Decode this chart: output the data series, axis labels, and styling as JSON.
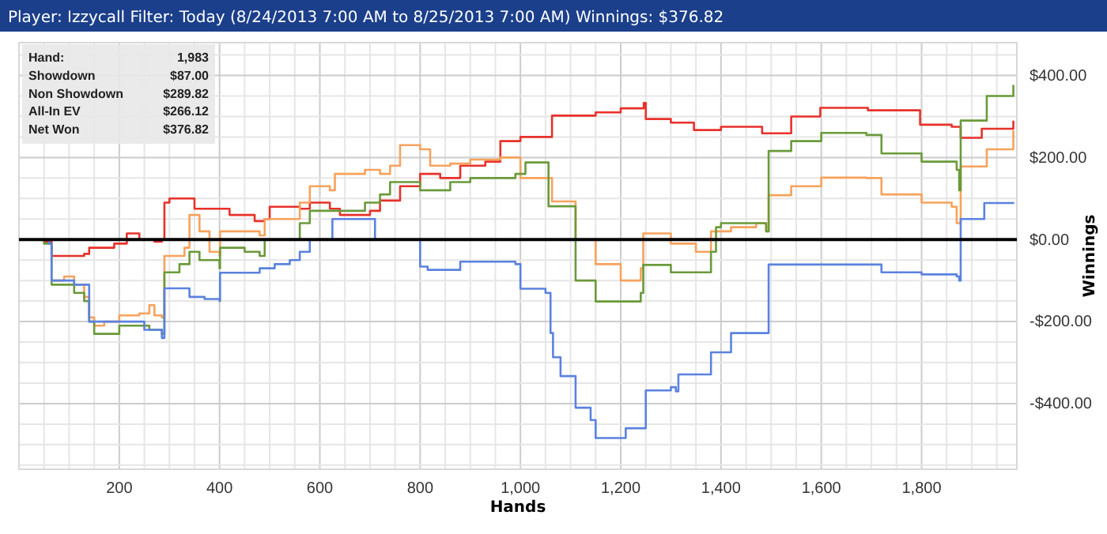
{
  "chart_data": {
    "type": "step",
    "title": "Player: Izzycall Filter: Today (8/24/2013 7:00 AM to 8/25/2013 7:00 AM) Winnings: $376.82",
    "xlabel": "Hands",
    "ylabel": "Winnings",
    "annotations": [
      "Hand:",
      "1,983",
      "Showdown",
      "$87.00",
      "Non Showdown",
      "$289.82",
      "All-In EV",
      "$266.12",
      "Net Won",
      "$376.82"
    ],
    "xlim": [
      0,
      1990
    ],
    "ylim": [
      -560,
      480
    ],
    "xticks": [
      {
        "value": 50,
        "label": null
      },
      {
        "value": 100,
        "label": null
      },
      {
        "value": 150,
        "label": null
      },
      200,
      {
        "value": 250,
        "label": null
      },
      {
        "value": 300,
        "label": null
      },
      {
        "value": 350,
        "label": null
      },
      400,
      {
        "value": 450,
        "label": null
      },
      {
        "value": 500,
        "label": null
      },
      {
        "value": 550,
        "label": null
      },
      600,
      {
        "value": 650,
        "label": null
      },
      {
        "value": 700,
        "label": null
      },
      {
        "value": 750,
        "label": null
      },
      800,
      {
        "value": 850,
        "label": null
      },
      {
        "value": 900,
        "label": null
      },
      {
        "value": 950,
        "label": null
      },
      {
        "value": 1000,
        "label": "1,000"
      },
      {
        "value": 1050,
        "label": null
      },
      {
        "value": 1100,
        "label": null
      },
      {
        "value": 1150,
        "label": null
      },
      {
        "value": 1200,
        "label": "1,200"
      },
      {
        "value": 1250,
        "label": null
      },
      {
        "value": 1300,
        "label": null
      },
      {
        "value": 1350,
        "label": null
      },
      {
        "value": 1400,
        "label": "1,400"
      },
      {
        "value": 1450,
        "label": null
      },
      {
        "value": 1500,
        "label": null
      },
      {
        "value": 1550,
        "label": null
      },
      {
        "value": 1600,
        "label": "1,600"
      },
      {
        "value": 1650,
        "label": null
      },
      {
        "value": 1700,
        "label": null
      },
      {
        "value": 1750,
        "label": null
      },
      {
        "value": 1800,
        "label": "1,800"
      },
      {
        "value": 1850,
        "label": null
      },
      {
        "value": 1900,
        "label": null
      },
      {
        "value": 1950,
        "label": null
      }
    ],
    "yticks": [
      {
        "value": -550,
        "label": null
      },
      {
        "value": -500,
        "label": null
      },
      {
        "value": -450,
        "label": null
      },
      {
        "value": -400,
        "label": "-$400.00"
      },
      {
        "value": -350,
        "label": null
      },
      {
        "value": -300,
        "label": null
      },
      {
        "value": -250,
        "label": null
      },
      {
        "value": -200,
        "label": "-$200.00"
      },
      {
        "value": -150,
        "label": null
      },
      {
        "value": -100,
        "label": null
      },
      {
        "value": -50,
        "label": null
      },
      {
        "value": 0,
        "label": "$0.00"
      },
      {
        "value": 50,
        "label": null
      },
      {
        "value": 100,
        "label": null
      },
      {
        "value": 150,
        "label": null
      },
      {
        "value": 200,
        "label": "$200.00"
      },
      {
        "value": 250,
        "label": null
      },
      {
        "value": 300,
        "label": null
      },
      {
        "value": 350,
        "label": null
      },
      {
        "value": 400,
        "label": "$400.00"
      },
      {
        "value": 450,
        "label": null
      }
    ],
    "grid": true,
    "line_style": "solid",
    "ref_lines": [
      {
        "axis": "y",
        "value": 0,
        "label": null,
        "color": "#000000"
      }
    ],
    "series": [
      {
        "color": "#e8312a",
        "x": [
          0,
          50,
          65,
          130,
          140,
          190,
          215,
          240,
          270,
          285,
          290,
          300,
          350,
          420,
          470,
          490,
          500,
          560,
          580,
          620,
          640,
          680,
          700,
          720,
          760,
          800,
          840,
          880,
          930,
          960,
          1000,
          1063,
          1150,
          1200,
          1246,
          1250,
          1300,
          1346,
          1400,
          1482,
          1540,
          1598,
          1693,
          1797,
          1860,
          1878,
          1920,
          1983
        ],
        "values": [
          0,
          -5,
          -40,
          -35,
          -20,
          -10,
          15,
          0,
          -5,
          0,
          90,
          100,
          75,
          60,
          45,
          50,
          80,
          75,
          90,
          75,
          60,
          60,
          70,
          95,
          130,
          160,
          150,
          180,
          190,
          240,
          250,
          302,
          310,
          320,
          333,
          294,
          285,
          267,
          275,
          259,
          300,
          321,
          315,
          280,
          275,
          248,
          270,
          290
        ]
      },
      {
        "color": "#f7a25c",
        "x": [
          65,
          90,
          110,
          130,
          140,
          150,
          170,
          200,
          240,
          260,
          270,
          285,
          290,
          330,
          340,
          360,
          380,
          400,
          401,
          480,
          490,
          560,
          580,
          620,
          630,
          690,
          720,
          740,
          760,
          800,
          820,
          860,
          900,
          960,
          990,
          1000,
          1063,
          1110,
          1150,
          1200,
          1240,
          1245,
          1300,
          1350,
          1380,
          1420,
          1470,
          1490,
          1495,
          1540,
          1600,
          1690,
          1720,
          1800,
          1860,
          1870,
          1878,
          1930,
          1983
        ],
        "values": [
          -100,
          -90,
          -110,
          -140,
          -190,
          -210,
          -200,
          -185,
          -180,
          -160,
          -185,
          -190,
          -40,
          -20,
          60,
          20,
          -30,
          -40,
          20,
          10,
          50,
          90,
          130,
          120,
          160,
          170,
          160,
          180,
          230,
          220,
          180,
          185,
          195,
          200,
          200,
          150,
          93,
          0,
          -60,
          -100,
          -70,
          15,
          -10,
          -30,
          20,
          30,
          40,
          20,
          108,
          130,
          151,
          150,
          110,
          90,
          80,
          40,
          178,
          220,
          266
        ]
      },
      {
        "color": "#6a9a3a",
        "x": [
          0,
          50,
          65,
          110,
          130,
          140,
          150,
          200,
          240,
          260,
          285,
          290,
          320,
          340,
          360,
          400,
          401,
          450,
          480,
          490,
          560,
          580,
          630,
          690,
          720,
          740,
          780,
          800,
          860,
          900,
          960,
          990,
          1010,
          1056,
          1110,
          1150,
          1240,
          1245,
          1300,
          1350,
          1380,
          1390,
          1400,
          1490,
          1495,
          1540,
          1600,
          1690,
          1720,
          1800,
          1870,
          1875,
          1878,
          1930,
          1983
        ],
        "values": [
          0,
          -10,
          -110,
          -130,
          -150,
          -200,
          -230,
          -210,
          -210,
          -220,
          -230,
          -80,
          -60,
          -30,
          -50,
          -70,
          -20,
          -30,
          -40,
          0,
          40,
          70,
          70,
          90,
          110,
          140,
          140,
          120,
          140,
          150,
          150,
          160,
          188,
          81,
          -100,
          -151,
          -130,
          -62,
          -80,
          -80,
          -30,
          30,
          40,
          20,
          216,
          240,
          260,
          255,
          210,
          190,
          170,
          120,
          290,
          350,
          377
        ]
      },
      {
        "color": "#5b82e0",
        "x": [
          0,
          60,
          65,
          110,
          140,
          200,
          250,
          285,
          290,
          340,
          370,
          400,
          401,
          480,
          510,
          540,
          560,
          580,
          625,
          700,
          710,
          790,
          800,
          815,
          870,
          880,
          990,
          1000,
          1050,
          1060,
          1065,
          1080,
          1110,
          1140,
          1150,
          1200,
          1210,
          1240,
          1250,
          1300,
          1310,
          1315,
          1370,
          1380,
          1410,
          1420,
          1490,
          1495,
          1710,
          1720,
          1800,
          1870,
          1875,
          1878,
          1920,
          1925,
          1983
        ],
        "values": [
          0,
          -10,
          -100,
          -110,
          -200,
          -200,
          -220,
          -240,
          -119,
          -140,
          -145,
          -150,
          -81,
          -70,
          -60,
          -50,
          -30,
          0,
          50,
          50,
          0,
          0,
          -66,
          -74,
          -74,
          -54,
          -60,
          -120,
          -130,
          -228,
          -287,
          -333,
          -410,
          -440,
          -484,
          -484,
          -460,
          -460,
          -368,
          -360,
          -370,
          -329,
          -329,
          -275,
          -275,
          -228,
          -228,
          -61,
          -61,
          -80,
          -85,
          -90,
          -100,
          50,
          50,
          89,
          87
        ]
      }
    ]
  }
}
